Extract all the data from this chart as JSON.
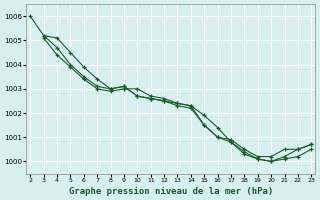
{
  "title": "Graphe pression niveau de la mer (hPa)",
  "bg_color": "#d8eff0",
  "grid_color": "#ffffff",
  "line_color": "#1a5c2a",
  "ylim": [
    999.5,
    1006.5
  ],
  "yticks": [
    1000,
    1001,
    1002,
    1003,
    1004,
    1005,
    1006
  ],
  "series": [
    {
      "x": [
        2,
        3,
        4,
        5,
        6,
        7,
        8,
        9,
        10,
        11,
        12,
        13,
        14,
        15,
        16,
        17,
        18,
        19,
        20,
        21,
        22,
        23
      ],
      "y": [
        1006.0,
        1005.2,
        1004.7,
        1004.0,
        1003.5,
        1003.1,
        1003.0,
        1003.1,
        1002.7,
        1002.6,
        1002.5,
        1002.3,
        1002.2,
        1001.5,
        1001.0,
        1000.9,
        1000.5,
        1000.2,
        1000.2,
        1000.5,
        1000.5,
        1000.7
      ]
    },
    {
      "x": [
        3,
        4,
        5,
        6,
        7,
        8,
        9,
        10,
        11,
        12,
        13,
        14,
        15,
        16,
        17,
        18,
        19,
        20,
        21,
        22,
        23
      ],
      "y": [
        1005.2,
        1005.1,
        1004.5,
        1003.9,
        1003.4,
        1003.0,
        1003.1,
        1002.7,
        1002.6,
        1002.5,
        1002.4,
        1002.3,
        1001.5,
        1001.0,
        1000.8,
        1000.3,
        1000.1,
        1000.0,
        1000.2,
        1000.5,
        1000.7
      ]
    },
    {
      "x": [
        3,
        4,
        5,
        6,
        7,
        8,
        9,
        10,
        11,
        12,
        13,
        14,
        15,
        16,
        17,
        18,
        19,
        20,
        21,
        22,
        23
      ],
      "y": [
        1005.1,
        1004.4,
        1003.9,
        1003.4,
        1003.0,
        1002.9,
        1003.0,
        1003.0,
        1002.7,
        1002.6,
        1002.4,
        1002.3,
        1001.9,
        1001.4,
        1000.8,
        1000.4,
        1000.1,
        1000.0,
        1000.1,
        1000.2,
        1000.5
      ]
    }
  ],
  "x_ticks": [
    2,
    3,
    4,
    5,
    6,
    7,
    8,
    9,
    10,
    11,
    12,
    13,
    14,
    15,
    16,
    17,
    18,
    19,
    20,
    21,
    22,
    23
  ],
  "xlim": [
    1.7,
    23.3
  ]
}
